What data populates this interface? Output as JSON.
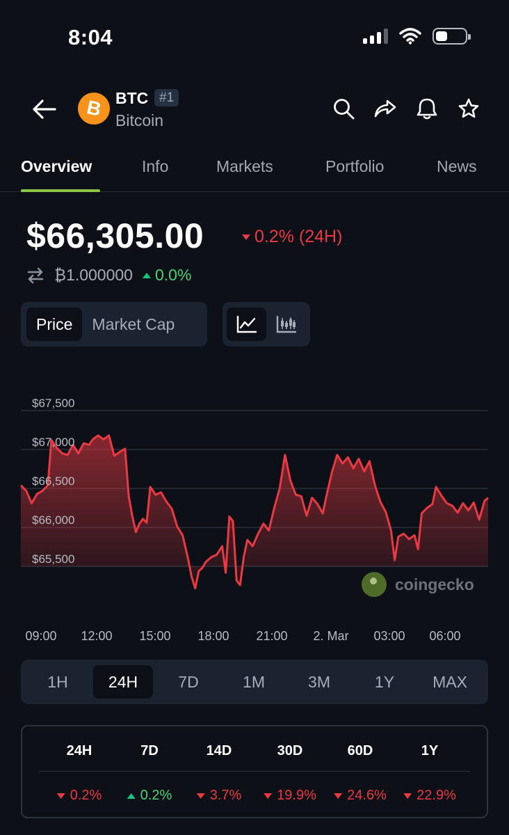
{
  "status_bar": {
    "time": "8:04"
  },
  "header": {
    "symbol": "BTC",
    "rank": "#1",
    "name": "Bitcoin",
    "logo_glyph": "B",
    "icons": [
      "back-arrow-icon",
      "search-icon",
      "share-icon",
      "bell-icon",
      "star-icon"
    ]
  },
  "tabs": [
    {
      "label": "Overview",
      "active": true
    },
    {
      "label": "Info"
    },
    {
      "label": "Markets"
    },
    {
      "label": "Portfolio"
    },
    {
      "label": "News"
    }
  ],
  "price": {
    "value": "$66,305.00",
    "change_24h": "0.2% (24H)",
    "btc_value": "₿1.000000",
    "btc_change": "0.0%"
  },
  "chart_toggle": {
    "price": "Price",
    "market_cap": "Market Cap"
  },
  "chart_data": {
    "type": "area",
    "y_ticks": [
      "$67,500",
      "$67,000",
      "$66,500",
      "$66,000",
      "$65,500"
    ],
    "x_ticks": [
      "09:00",
      "12:00",
      "15:00",
      "18:00",
      "21:00",
      "2. Mar",
      "03:00",
      "06:00"
    ],
    "ylim": [
      65200,
      67700
    ],
    "x_range_hours": [
      8,
      32
    ],
    "values": [
      [
        8.0,
        66540
      ],
      [
        8.3,
        66470
      ],
      [
        8.6,
        66310
      ],
      [
        8.9,
        66430
      ],
      [
        9.2,
        66470
      ],
      [
        9.5,
        66540
      ],
      [
        9.7,
        67120
      ],
      [
        10.0,
        67020
      ],
      [
        10.3,
        66950
      ],
      [
        10.6,
        66930
      ],
      [
        10.9,
        67060
      ],
      [
        11.2,
        66950
      ],
      [
        11.5,
        67080
      ],
      [
        11.8,
        67060
      ],
      [
        12.0,
        67130
      ],
      [
        12.3,
        67180
      ],
      [
        12.6,
        67130
      ],
      [
        12.9,
        67180
      ],
      [
        13.2,
        66920
      ],
      [
        13.5,
        66970
      ],
      [
        13.8,
        67010
      ],
      [
        14.0,
        66400
      ],
      [
        14.2,
        66150
      ],
      [
        14.4,
        65940
      ],
      [
        14.6,
        66050
      ],
      [
        14.8,
        66110
      ],
      [
        15.0,
        66060
      ],
      [
        15.2,
        66520
      ],
      [
        15.5,
        66420
      ],
      [
        15.8,
        66450
      ],
      [
        16.1,
        66330
      ],
      [
        16.4,
        66240
      ],
      [
        16.7,
        66010
      ],
      [
        17.0,
        65900
      ],
      [
        17.3,
        65600
      ],
      [
        17.5,
        65370
      ],
      [
        17.7,
        65220
      ],
      [
        17.9,
        65440
      ],
      [
        18.1,
        65480
      ],
      [
        18.3,
        65560
      ],
      [
        18.6,
        65620
      ],
      [
        18.9,
        65650
      ],
      [
        19.2,
        65760
      ],
      [
        19.4,
        65420
      ],
      [
        19.6,
        66140
      ],
      [
        19.8,
        66080
      ],
      [
        20.0,
        65320
      ],
      [
        20.2,
        65260
      ],
      [
        20.4,
        65620
      ],
      [
        20.6,
        65840
      ],
      [
        20.9,
        65760
      ],
      [
        21.2,
        65920
      ],
      [
        21.5,
        66050
      ],
      [
        21.8,
        65960
      ],
      [
        22.1,
        66250
      ],
      [
        22.4,
        66500
      ],
      [
        22.7,
        66930
      ],
      [
        23.0,
        66600
      ],
      [
        23.3,
        66420
      ],
      [
        23.6,
        66400
      ],
      [
        23.9,
        66150
      ],
      [
        24.2,
        66380
      ],
      [
        24.5,
        66300
      ],
      [
        24.8,
        66180
      ],
      [
        25.0,
        66400
      ],
      [
        25.3,
        66700
      ],
      [
        25.6,
        66930
      ],
      [
        25.9,
        66820
      ],
      [
        26.2,
        66900
      ],
      [
        26.5,
        66760
      ],
      [
        26.8,
        66880
      ],
      [
        27.1,
        66720
      ],
      [
        27.4,
        66850
      ],
      [
        27.7,
        66540
      ],
      [
        28.0,
        66330
      ],
      [
        28.3,
        66200
      ],
      [
        28.6,
        65960
      ],
      [
        28.8,
        65580
      ],
      [
        29.0,
        65880
      ],
      [
        29.3,
        65920
      ],
      [
        29.6,
        65850
      ],
      [
        29.9,
        65900
      ],
      [
        30.1,
        65720
      ],
      [
        30.3,
        66180
      ],
      [
        30.6,
        66250
      ],
      [
        30.9,
        66300
      ],
      [
        31.1,
        66520
      ],
      [
        31.4,
        66410
      ],
      [
        31.7,
        66310
      ],
      [
        32.0,
        66280
      ],
      [
        32.3,
        66190
      ],
      [
        32.6,
        66310
      ],
      [
        32.9,
        66220
      ],
      [
        33.2,
        66320
      ],
      [
        33.5,
        66100
      ],
      [
        33.8,
        66340
      ],
      [
        34.0,
        66380
      ]
    ],
    "line_color": "#ea3943",
    "watermark": "coingecko"
  },
  "time_ranges": [
    {
      "label": "1H"
    },
    {
      "label": "24H",
      "active": true
    },
    {
      "label": "7D"
    },
    {
      "label": "1M"
    },
    {
      "label": "3M"
    },
    {
      "label": "1Y"
    },
    {
      "label": "MAX"
    }
  ],
  "performance": [
    {
      "period": "24H",
      "change": "0.2%",
      "direction": "down"
    },
    {
      "period": "7D",
      "change": "0.2%",
      "direction": "up"
    },
    {
      "period": "14D",
      "change": "3.7%",
      "direction": "down"
    },
    {
      "period": "30D",
      "change": "19.9%",
      "direction": "down"
    },
    {
      "period": "60D",
      "change": "24.6%",
      "direction": "down"
    },
    {
      "period": "1Y",
      "change": "22.9%",
      "direction": "down"
    }
  ],
  "colors": {
    "background": "#0d1117",
    "negative": "#ea3943",
    "positive": "#16c784",
    "tab_accent": "#8dc647"
  }
}
